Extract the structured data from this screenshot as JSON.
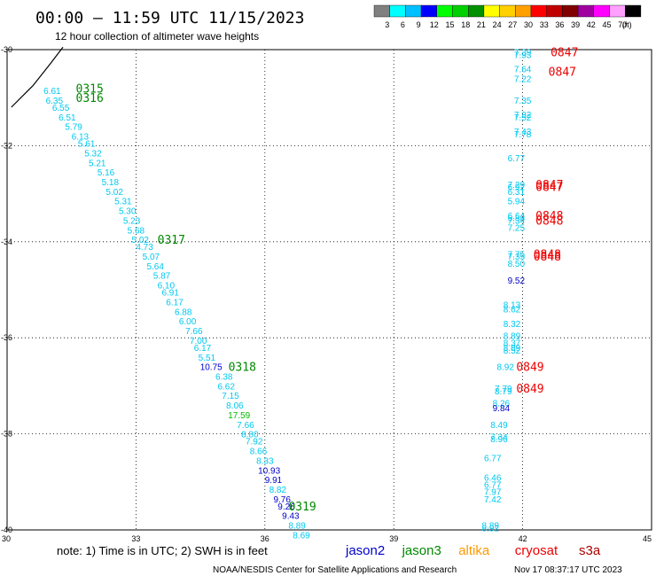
{
  "header": {
    "title": "00:00 – 11:59 UTC 11/15/2023",
    "subtitle": "12 hour collection of altimeter wave heights"
  },
  "colorbar": {
    "colors": [
      "#808080",
      "#00ffff",
      "#00c0ff",
      "#0000ff",
      "#00ff00",
      "#00d000",
      "#009000",
      "#ffff00",
      "#ffd000",
      "#ffa000",
      "#ff0000",
      "#c00000",
      "#800000",
      "#a000a0",
      "#ff00ff",
      "#ffa0ff",
      "#000000"
    ],
    "labels": [
      "3",
      "6",
      "9",
      "12",
      "15",
      "18",
      "21",
      "24",
      "27",
      "30",
      "33",
      "36",
      "39",
      "42",
      "45",
      "70",
      "(ft)"
    ]
  },
  "footer": {
    "note": "note:  1) Time is in UTC; 2) SWH is in feet",
    "credit": "NOAA/NESDIS Center for Satellite Applications and Research",
    "timestamp": "Nov 17 08:37:17 UTC 2023",
    "satellites": [
      {
        "name": "jason2",
        "color": "#0000cc"
      },
      {
        "name": "jason3",
        "color": "#008800"
      },
      {
        "name": "altika",
        "color": "#ff9900"
      },
      {
        "name": "cryosat",
        "color": "#ee0000"
      },
      {
        "name": "s3a",
        "color": "#aa0000"
      }
    ]
  },
  "chart_data": {
    "type": "scatter",
    "xlim": [
      30,
      45
    ],
    "ylim": [
      -40,
      -30
    ],
    "xticks": [
      "30",
      "33",
      "36",
      "39",
      "42",
      "45"
    ],
    "yticks": [
      "-30",
      "-32",
      "-34",
      "-36",
      "-38",
      "-40"
    ],
    "grid": true,
    "coastline": [
      [
        30.1,
        -31.2
      ],
      [
        30.6,
        -30.75
      ],
      [
        31.0,
        -30.3
      ],
      [
        31.3,
        -29.95
      ]
    ],
    "series": [
      {
        "color": "#00c8f0",
        "points": [
          [
            31.05,
            -30.85,
            "6.61",
            "#00c8f0"
          ],
          [
            31.1,
            -31.05,
            "6.35",
            "#00c8f0"
          ],
          [
            31.25,
            -31.2,
            "6.55",
            "#00c8f0"
          ],
          [
            31.4,
            -31.4,
            "6.51",
            "#00c8f0"
          ],
          [
            31.55,
            -31.6,
            "5.79",
            "#00c8f0"
          ],
          [
            31.7,
            -31.8,
            "6.13",
            "#00c8f0"
          ],
          [
            31.85,
            -31.95,
            "5.61",
            "#00c8f0"
          ],
          [
            32.0,
            -32.15,
            "5.32",
            "#00c8f0"
          ],
          [
            32.1,
            -32.35,
            "5.21",
            "#00c8f0"
          ],
          [
            32.3,
            -32.55,
            "5.16",
            "#00c8f0"
          ],
          [
            32.4,
            -32.75,
            "5.18",
            "#00c8f0"
          ],
          [
            32.5,
            -32.95,
            "5.02",
            "#00c8f0"
          ],
          [
            32.7,
            -33.15,
            "5.31",
            "#00c8f0"
          ],
          [
            32.8,
            -33.35,
            "5.30",
            "#00c8f0"
          ],
          [
            32.9,
            -33.55,
            "5.23",
            "#00c8f0"
          ],
          [
            33.0,
            -33.75,
            "5.68",
            "#00c8f0"
          ],
          [
            33.1,
            -33.95,
            "5.02",
            "#00c8f0"
          ],
          [
            33.2,
            -34.1,
            "4.73",
            "#00c8f0"
          ],
          [
            33.35,
            -34.3,
            "5.07",
            "#00c8f0"
          ],
          [
            33.45,
            -34.5,
            "5.64",
            "#00c8f0"
          ],
          [
            33.6,
            -34.7,
            "5.87",
            "#00c8f0"
          ],
          [
            33.7,
            -34.9,
            "6.10",
            "#00c8f0"
          ],
          [
            33.8,
            -35.05,
            "6.91",
            "#00c8f0"
          ],
          [
            33.9,
            -35.25,
            "6.17",
            "#00c8f0"
          ],
          [
            34.1,
            -35.45,
            "6.88",
            "#00c8f0"
          ],
          [
            34.2,
            -35.65,
            "6.00",
            "#00c8f0"
          ],
          [
            34.35,
            -35.85,
            "7.66",
            "#00c8f0"
          ],
          [
            34.45,
            -36.05,
            "7.00",
            "#00c8f0"
          ],
          [
            34.55,
            -36.2,
            "6.17",
            "#00c8f0"
          ],
          [
            34.65,
            -36.4,
            "5.51",
            "#00c8f0"
          ],
          [
            34.75,
            -36.6,
            "10.75",
            "#0000cc"
          ],
          [
            35.05,
            -36.8,
            "6.38",
            "#00c8f0"
          ],
          [
            35.1,
            -37.0,
            "6.62",
            "#00c8f0"
          ],
          [
            35.2,
            -37.2,
            "7.15",
            "#00c8f0"
          ],
          [
            35.3,
            -37.4,
            "8.06",
            "#00c8f0"
          ],
          [
            35.4,
            -37.6,
            "17.59",
            "#00bb00"
          ],
          [
            35.55,
            -37.8,
            "7.66",
            "#00c8f0"
          ],
          [
            35.65,
            -38.0,
            "8.80",
            "#00c8f0"
          ],
          [
            35.75,
            -38.15,
            "7.92",
            "#00c8f0"
          ],
          [
            35.85,
            -38.35,
            "8.66",
            "#00c8f0"
          ],
          [
            36.0,
            -38.55,
            "8.33",
            "#00c8f0"
          ],
          [
            36.1,
            -38.75,
            "10.93",
            "#0000cc"
          ],
          [
            36.2,
            -38.95,
            "9.91",
            "#0000cc"
          ],
          [
            36.3,
            -39.15,
            "8.82",
            "#00c8f0"
          ],
          [
            36.4,
            -39.35,
            "9.76",
            "#0000cc"
          ],
          [
            36.5,
            -39.5,
            "9.26",
            "#0000cc"
          ],
          [
            36.6,
            -39.7,
            "9.43",
            "#0000cc"
          ],
          [
            36.75,
            -39.9,
            "8.89",
            "#00c8f0"
          ],
          [
            36.85,
            -40.1,
            "8.69",
            "#00c8f0"
          ]
        ]
      },
      {
        "color": "#00c8f0",
        "points": [
          [
            42.0,
            -30.05,
            "7.39",
            "#00c8f0"
          ],
          [
            42.0,
            -30.1,
            "7.93",
            "#00c8f0"
          ],
          [
            42.0,
            -30.4,
            "7.64",
            "#00c8f0"
          ],
          [
            42.0,
            -30.6,
            "7.22",
            "#00c8f0"
          ],
          [
            42.0,
            -31.05,
            "7.35",
            "#00c8f0"
          ],
          [
            42.0,
            -31.35,
            "7.32",
            "#00c8f0"
          ],
          [
            42.0,
            -31.4,
            "7.52",
            "#00c8f0"
          ],
          [
            42.0,
            -31.7,
            "7.43",
            "#00c8f0"
          ],
          [
            42.0,
            -31.75,
            "7.78",
            "#00c8f0"
          ],
          [
            41.85,
            -32.25,
            "6.77",
            "#00c8f0"
          ],
          [
            41.85,
            -32.8,
            "7.29",
            "#00c8f0"
          ],
          [
            41.85,
            -32.85,
            "6.92",
            "#00c8f0"
          ],
          [
            41.85,
            -32.95,
            "6.31",
            "#00c8f0"
          ],
          [
            41.85,
            -33.15,
            "5.94",
            "#00c8f0"
          ],
          [
            41.85,
            -33.45,
            "6.64",
            "#00c8f0"
          ],
          [
            41.85,
            -33.5,
            "6.88",
            "#00c8f0"
          ],
          [
            41.85,
            -33.55,
            "7.34",
            "#00c8f0"
          ],
          [
            41.85,
            -33.7,
            "7.25",
            "#00c8f0"
          ],
          [
            41.85,
            -34.25,
            "7.75",
            "#00c8f0"
          ],
          [
            41.85,
            -34.3,
            "7.35",
            "#00c8f0"
          ],
          [
            41.85,
            -34.45,
            "8.50",
            "#00c8f0"
          ],
          [
            41.85,
            -34.8,
            "9.52",
            "#0000cc"
          ],
          [
            41.75,
            -35.3,
            "8.13",
            "#00c8f0"
          ],
          [
            41.75,
            -35.4,
            "8.62",
            "#00c8f0"
          ],
          [
            41.75,
            -35.7,
            "8.32",
            "#00c8f0"
          ],
          [
            41.75,
            -35.95,
            "8.89",
            "#00c8f0"
          ],
          [
            41.75,
            -36.1,
            "8.37",
            "#00c8f0"
          ],
          [
            41.75,
            -36.2,
            "8.89",
            "#00c8f0"
          ],
          [
            41.75,
            -36.25,
            "8.52",
            "#00c8f0"
          ],
          [
            41.6,
            -36.6,
            "8.92",
            "#00c8f0"
          ],
          [
            41.55,
            -37.05,
            "7.79",
            "#00c8f0"
          ],
          [
            41.55,
            -37.1,
            "8.79",
            "#00c8f0"
          ],
          [
            41.5,
            -37.35,
            "8.26",
            "#00c8f0"
          ],
          [
            41.5,
            -37.45,
            "9.84",
            "#0000cc"
          ],
          [
            41.45,
            -37.8,
            "8.49",
            "#00c8f0"
          ],
          [
            41.45,
            -38.05,
            "7.34",
            "#00c8f0"
          ],
          [
            41.45,
            -38.1,
            "8.96",
            "#00c8f0"
          ],
          [
            41.3,
            -38.5,
            "6.77",
            "#00c8f0"
          ],
          [
            41.3,
            -38.9,
            "6.46",
            "#00c8f0"
          ],
          [
            41.3,
            -39.05,
            "6.77",
            "#00c8f0"
          ],
          [
            41.3,
            -39.2,
            "7.97",
            "#00c8f0"
          ],
          [
            41.3,
            -39.35,
            "7.42",
            "#00c8f0"
          ],
          [
            41.25,
            -39.9,
            "8.89",
            "#00c8f0"
          ],
          [
            41.25,
            -39.95,
            "8.92",
            "#00c8f0"
          ]
        ]
      }
    ],
    "time_labels": [
      [
        31.6,
        -30.8,
        "0315",
        "#008800"
      ],
      [
        31.6,
        -31.0,
        "0316",
        "#008800"
      ],
      [
        33.5,
        -33.95,
        "0317",
        "#008800"
      ],
      [
        35.15,
        -36.6,
        "0318",
        "#008800"
      ],
      [
        36.55,
        -39.5,
        "0319",
        "#008800"
      ],
      [
        42.65,
        -30.05,
        "0847",
        "#ee0000"
      ],
      [
        42.6,
        -30.45,
        "0847",
        "#ee0000"
      ],
      [
        42.3,
        -32.8,
        "0847",
        "#ee0000"
      ],
      [
        42.3,
        -32.85,
        "0847",
        "#ee0000"
      ],
      [
        42.3,
        -33.45,
        "0848",
        "#ee0000"
      ],
      [
        42.3,
        -33.55,
        "0848",
        "#ee0000"
      ],
      [
        42.25,
        -34.25,
        "0848",
        "#ee0000"
      ],
      [
        42.25,
        -34.3,
        "0848",
        "#ee0000"
      ],
      [
        41.85,
        -36.6,
        "0849",
        "#ee0000"
      ],
      [
        41.85,
        -37.05,
        "0849",
        "#ee0000"
      ]
    ]
  }
}
